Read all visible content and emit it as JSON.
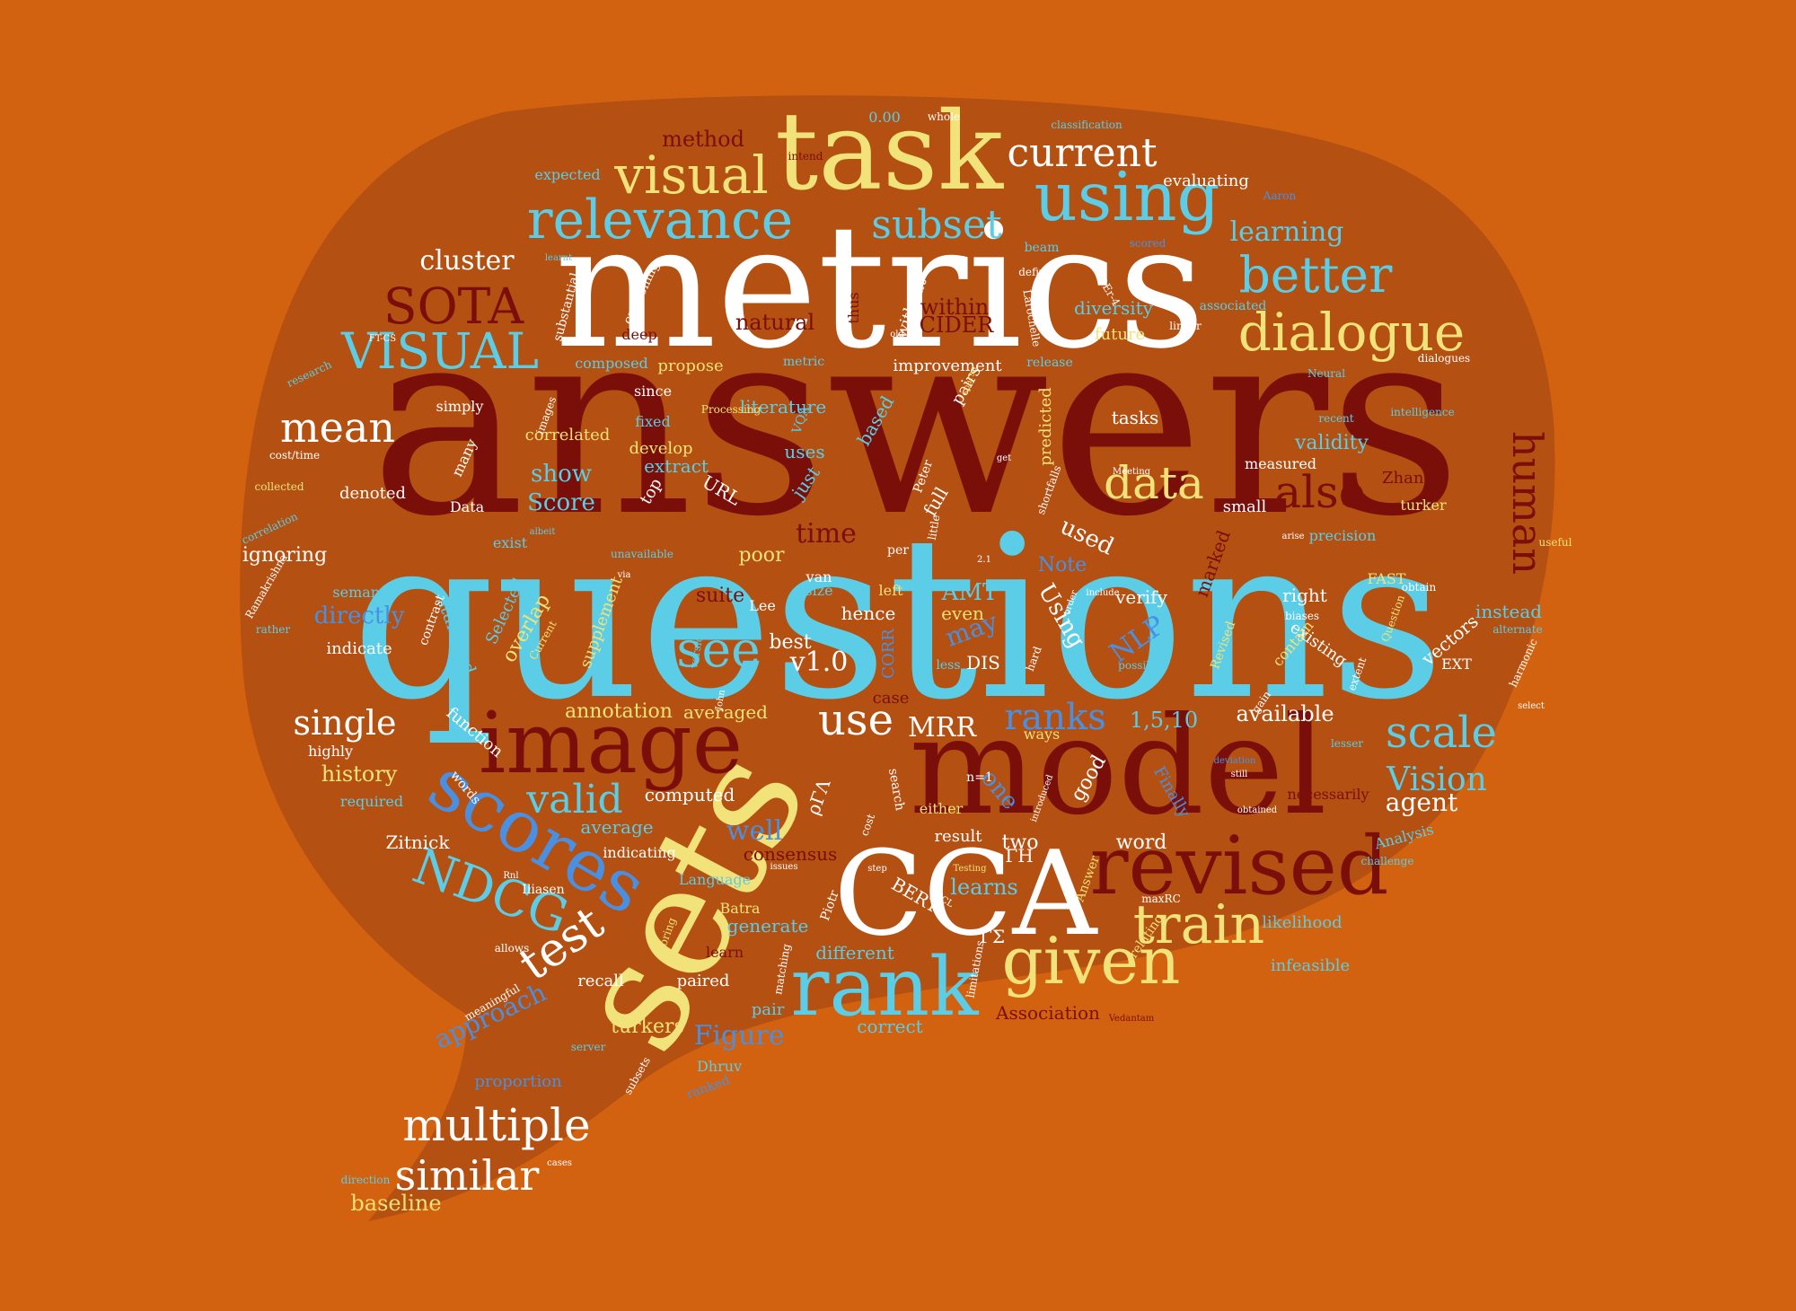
{
  "colors": {
    "background": "#d2620f",
    "bubble": "#b35012",
    "dark_red": "#7a0f0a",
    "cyan": "#5bcde6",
    "white": "#ffffff",
    "yellow": "#f2e27a",
    "blue": "#4a90e2",
    "orange_text": "#f0a020"
  },
  "words": [
    {
      "text": "answers",
      "color": "dark_red"
    },
    {
      "text": "questions",
      "color": "cyan"
    },
    {
      "text": "metrics",
      "color": "white"
    },
    {
      "text": "sets",
      "color": "yellow"
    },
    {
      "text": "model",
      "color": "dark_red"
    },
    {
      "text": "task",
      "color": "yellow"
    },
    {
      "text": "CCA",
      "color": "white"
    },
    {
      "text": "image",
      "color": "dark_red"
    },
    {
      "text": "revised",
      "color": "dark_red"
    },
    {
      "text": "rank",
      "color": "cyan"
    },
    {
      "text": "scores",
      "color": "blue"
    },
    {
      "text": "relevance",
      "color": "cyan"
    },
    {
      "text": "using",
      "color": "cyan"
    },
    {
      "text": "visual",
      "color": "yellow"
    },
    {
      "text": "dialogue",
      "color": "yellow"
    },
    {
      "text": "VISUAL",
      "color": "cyan"
    },
    {
      "text": "SOTA",
      "color": "dark_red"
    },
    {
      "text": "better",
      "color": "cyan"
    },
    {
      "text": "current",
      "color": "white"
    },
    {
      "text": "subset",
      "color": "cyan"
    },
    {
      "text": "given",
      "color": "yellow"
    },
    {
      "text": "train",
      "color": "yellow"
    },
    {
      "text": "multiple",
      "color": "white"
    },
    {
      "text": "similar",
      "color": "white"
    },
    {
      "text": "NDCG",
      "color": "cyan"
    },
    {
      "text": "test",
      "color": "white"
    },
    {
      "text": "data",
      "color": "yellow"
    },
    {
      "text": "also",
      "color": "dark_red"
    },
    {
      "text": "human",
      "color": "dark_red"
    },
    {
      "text": "mean",
      "color": "white"
    },
    {
      "text": "see",
      "color": "cyan"
    },
    {
      "text": "use",
      "color": "white"
    },
    {
      "text": "scale",
      "color": "cyan"
    },
    {
      "text": "valid",
      "color": "cyan"
    },
    {
      "text": "ranks",
      "color": "blue"
    },
    {
      "text": "single",
      "color": "white"
    },
    {
      "text": "cluster",
      "color": "white"
    },
    {
      "text": "learning",
      "color": "cyan"
    },
    {
      "text": "Vision",
      "color": "cyan"
    },
    {
      "text": "agent",
      "color": "white"
    },
    {
      "text": "MRR",
      "color": "white"
    },
    {
      "text": "v1.0",
      "color": "white"
    },
    {
      "text": "time",
      "color": "dark_red"
    },
    {
      "text": "NLP",
      "color": "blue"
    },
    {
      "text": "AMT",
      "color": "cyan"
    },
    {
      "text": "may",
      "color": "blue"
    },
    {
      "text": "Using",
      "color": "white"
    },
    {
      "text": "used",
      "color": "white"
    },
    {
      "text": "well",
      "color": "blue"
    },
    {
      "text": "consensus",
      "color": "dark_red"
    },
    {
      "text": "approach",
      "color": "blue"
    },
    {
      "text": "Figure",
      "color": "blue"
    },
    {
      "text": "turkers",
      "color": "yellow"
    },
    {
      "text": "baseline",
      "color": "yellow"
    },
    {
      "text": "history",
      "color": "yellow"
    },
    {
      "text": "Zitnick",
      "color": "white"
    },
    {
      "text": "annotation",
      "color": "yellow"
    },
    {
      "text": "averaged",
      "color": "yellow"
    },
    {
      "text": "available",
      "color": "white"
    },
    {
      "text": "1,5,10",
      "color": "cyan"
    },
    {
      "text": "directly",
      "color": "blue"
    },
    {
      "text": "show",
      "color": "cyan"
    },
    {
      "text": "Score",
      "color": "cyan"
    },
    {
      "text": "validity",
      "color": "cyan"
    },
    {
      "text": "precision",
      "color": "cyan"
    },
    {
      "text": "instead",
      "color": "cyan"
    },
    {
      "text": "verify",
      "color": "white"
    },
    {
      "text": "right",
      "color": "white"
    },
    {
      "text": "existing",
      "color": "white"
    },
    {
      "text": "learns",
      "color": "cyan"
    },
    {
      "text": "generate",
      "color": "cyan"
    },
    {
      "text": "different",
      "color": "cyan"
    },
    {
      "text": "correct",
      "color": "cyan"
    },
    {
      "text": "likelihood",
      "color": "cyan"
    },
    {
      "text": "infeasible",
      "color": "cyan"
    },
    {
      "text": "Association",
      "color": "dark_red"
    },
    {
      "text": "proportion",
      "color": "blue"
    },
    {
      "text": "computed",
      "color": "white"
    },
    {
      "text": "average",
      "color": "cyan"
    },
    {
      "text": "word",
      "color": "white"
    },
    {
      "text": "one",
      "color": "blue"
    },
    {
      "text": "two",
      "color": "white"
    },
    {
      "text": "good",
      "color": "white"
    },
    {
      "text": "hence",
      "color": "white"
    },
    {
      "text": "best",
      "color": "white"
    },
    {
      "text": "DIS",
      "color": "white"
    },
    {
      "text": "CIDER",
      "color": "dark_red"
    },
    {
      "text": "within",
      "color": "dark_red"
    },
    {
      "text": "natural",
      "color": "dark_red"
    },
    {
      "text": "method",
      "color": "dark_red"
    },
    {
      "text": "expected",
      "color": "cyan"
    },
    {
      "text": "evaluating",
      "color": "white"
    },
    {
      "text": "diversity",
      "color": "cyan"
    },
    {
      "text": "future",
      "color": "yellow"
    },
    {
      "text": "propose",
      "color": "yellow"
    },
    {
      "text": "improvement",
      "color": "white"
    },
    {
      "text": "composed",
      "color": "cyan"
    },
    {
      "text": "correlated",
      "color": "yellow"
    },
    {
      "text": "literature",
      "color": "cyan"
    },
    {
      "text": "uses",
      "color": "cyan"
    },
    {
      "text": "extract",
      "color": "cyan"
    },
    {
      "text": "develop",
      "color": "yellow"
    },
    {
      "text": "tasks",
      "color": "white"
    },
    {
      "text": "measured",
      "color": "white"
    },
    {
      "text": "Zhang",
      "color": "dark_red"
    },
    {
      "text": "turker",
      "color": "yellow"
    },
    {
      "text": "small",
      "color": "white"
    },
    {
      "text": "denoted",
      "color": "white"
    },
    {
      "text": "ignoring",
      "color": "white"
    },
    {
      "text": "indicate",
      "color": "white"
    },
    {
      "text": "semantic",
      "color": "cyan"
    },
    {
      "text": "suite",
      "color": "dark_red"
    },
    {
      "text": "poor",
      "color": "yellow"
    },
    {
      "text": "Note",
      "color": "blue"
    },
    {
      "text": "even",
      "color": "yellow"
    },
    {
      "text": "case",
      "color": "dark_red"
    },
    {
      "text": "function",
      "color": "white"
    },
    {
      "text": "highly",
      "color": "white"
    },
    {
      "text": "required",
      "color": "cyan"
    },
    {
      "text": "indicating",
      "color": "white"
    },
    {
      "text": "recall",
      "color": "white"
    },
    {
      "text": "paired",
      "color": "white"
    },
    {
      "text": "pair",
      "color": "cyan"
    },
    {
      "text": "learn",
      "color": "dark_red"
    },
    {
      "text": "Batra",
      "color": "yellow"
    },
    {
      "text": "Dhruv",
      "color": "cyan"
    },
    {
      "text": "result",
      "color": "white"
    },
    {
      "text": "either",
      "color": "yellow"
    },
    {
      "text": "necessarily",
      "color": "dark_red"
    },
    {
      "text": "Analysis",
      "color": "cyan"
    },
    {
      "text": "FAST",
      "color": "yellow"
    },
    {
      "text": "EXT",
      "color": "white"
    },
    {
      "text": "Data",
      "color": "white"
    },
    {
      "text": "URL",
      "color": "white"
    },
    {
      "text": "mean",
      "color": "white"
    },
    {
      "text": "since",
      "color": "white"
    },
    {
      "text": "fixed",
      "color": "cyan"
    },
    {
      "text": "simply",
      "color": "white"
    },
    {
      "text": "deep",
      "color": "dark_red"
    },
    {
      "text": "beam",
      "color": "cyan"
    },
    {
      "text": "define",
      "color": "white"
    },
    {
      "text": "associated",
      "color": "cyan"
    },
    {
      "text": "release",
      "color": "cyan"
    },
    {
      "text": "0.00",
      "color": "cyan"
    },
    {
      "text": "intend",
      "color": "dark_red"
    },
    {
      "text": "Language",
      "color": "cyan"
    },
    {
      "text": "top",
      "color": "white"
    },
    {
      "text": "just",
      "color": "cyan"
    },
    {
      "text": "full",
      "color": "white"
    },
    {
      "text": "based",
      "color": "cyan"
    },
    {
      "text": "pairs",
      "color": "white"
    },
    {
      "text": "predicted",
      "color": "yellow"
    },
    {
      "text": "marked",
      "color": "dark_red"
    },
    {
      "text": "vectors",
      "color": "white"
    },
    {
      "text": "contain",
      "color": "yellow"
    },
    {
      "text": "Revised",
      "color": "yellow"
    },
    {
      "text": "supplement",
      "color": "yellow"
    },
    {
      "text": "overlap",
      "color": "yellow"
    },
    {
      "text": "Selected",
      "color": "cyan"
    },
    {
      "text": "standard",
      "color": "cyan"
    },
    {
      "text": "exist",
      "color": "cyan"
    },
    {
      "text": "many",
      "color": "white"
    },
    {
      "text": "images",
      "color": "white"
    },
    {
      "text": "captioning",
      "color": "white"
    },
    {
      "text": "substantial",
      "color": "white"
    },
    {
      "text": "without",
      "color": "white"
    },
    {
      "text": "thus",
      "color": "dark_red"
    },
    {
      "text": "metric",
      "color": "cyan"
    },
    {
      "text": "Vedantam",
      "color": "dark_red"
    },
    {
      "text": "paired",
      "color": "white"
    },
    {
      "text": "subsets",
      "color": "white"
    },
    {
      "text": "scoring",
      "color": "yellow"
    },
    {
      "text": "BERT",
      "color": "white"
    },
    {
      "text": "Piotr",
      "color": "white"
    },
    {
      "text": "matching",
      "color": "white"
    },
    {
      "text": "limitations",
      "color": "white"
    },
    {
      "text": "ways",
      "color": "yellow"
    },
    {
      "text": "lesser",
      "color": "cyan"
    },
    {
      "text": "challenge",
      "color": "cyan"
    },
    {
      "text": "Finally",
      "color": "blue"
    },
    {
      "text": "size",
      "color": "cyan"
    },
    {
      "text": "left",
      "color": "yellow"
    },
    {
      "text": "van",
      "color": "white"
    },
    {
      "text": "Lee",
      "color": "white"
    },
    {
      "text": "CORR",
      "color": "blue"
    },
    {
      "text": "less",
      "color": "cyan"
    },
    {
      "text": "hard",
      "color": "white"
    },
    {
      "text": "order",
      "color": "white"
    },
    {
      "text": "possible",
      "color": "cyan"
    },
    {
      "text": "useful",
      "color": "yellow"
    },
    {
      "text": "obtain",
      "color": "white"
    },
    {
      "text": "biases",
      "color": "white"
    },
    {
      "text": "harmonic",
      "color": "white"
    },
    {
      "text": "alternate",
      "color": "cyan"
    },
    {
      "text": "Question",
      "color": "yellow"
    },
    {
      "text": "rather",
      "color": "cyan"
    },
    {
      "text": "collected",
      "color": "yellow"
    },
    {
      "text": "correlation",
      "color": "cyan"
    },
    {
      "text": "contrast",
      "color": "white"
    },
    {
      "text": "words",
      "color": "white"
    },
    {
      "text": "allows",
      "color": "white"
    },
    {
      "text": "meaningful",
      "color": "white"
    },
    {
      "text": "server",
      "color": "cyan"
    },
    {
      "text": "cases",
      "color": "white"
    },
    {
      "text": "direction",
      "color": "cyan"
    },
    {
      "text": "ranked",
      "color": "blue"
    },
    {
      "text": "Peter",
      "color": "white"
    },
    {
      "text": "per",
      "color": "white"
    },
    {
      "text": "Meeting",
      "color": "white"
    },
    {
      "text": "recent",
      "color": "cyan"
    },
    {
      "text": "Neural",
      "color": "cyan"
    },
    {
      "text": "intelligence",
      "color": "cyan"
    },
    {
      "text": "research",
      "color": "cyan"
    },
    {
      "text": "cost/time",
      "color": "white"
    },
    {
      "text": "Ramakrishna",
      "color": "white"
    },
    {
      "text": "issues",
      "color": "white"
    },
    {
      "text": "Aaron",
      "color": "blue"
    },
    {
      "text": "scored",
      "color": "blue"
    },
    {
      "text": "Larochelle",
      "color": "white"
    },
    {
      "text": "CIDEr-4",
      "color": "white"
    },
    {
      "text": "linear",
      "color": "white"
    },
    {
      "text": "dialogues",
      "color": "white"
    },
    {
      "text": "classification",
      "color": "cyan"
    },
    {
      "text": "whole",
      "color": "white"
    },
    {
      "text": "VQA",
      "color": "cyan"
    },
    {
      "text": "Processing",
      "color": "yellow"
    },
    {
      "text": "old",
      "color": "white"
    },
    {
      "text": "sparse",
      "color": "yellow"
    },
    {
      "text": "n=1",
      "color": "white"
    },
    {
      "text": "search",
      "color": "white"
    },
    {
      "text": "cost",
      "color": "white"
    },
    {
      "text": "extent",
      "color": "white"
    },
    {
      "text": "gain",
      "color": "white"
    },
    {
      "text": "ΓΣ",
      "color": "white"
    },
    {
      "text": "ΓΗ",
      "color": "white"
    },
    {
      "text": "ρΓΛ",
      "color": "white"
    },
    {
      "text": "Iliasen",
      "color": "white"
    },
    {
      "text": "ACL",
      "color": "white"
    },
    {
      "text": "John",
      "color": "white"
    },
    {
      "text": "version",
      "color": "cyan"
    },
    {
      "text": "Current",
      "color": "yellow"
    },
    {
      "text": "unavailable",
      "color": "cyan"
    },
    {
      "text": "via",
      "color": "white"
    },
    {
      "text": "2.1",
      "color": "white"
    },
    {
      "text": "little",
      "color": "white"
    },
    {
      "text": "shortfalls",
      "color": "white"
    },
    {
      "text": "get",
      "color": "white"
    },
    {
      "text": "albeit",
      "color": "cyan"
    },
    {
      "text": "maxRC",
      "color": "white"
    },
    {
      "text": "deviation",
      "color": "blue"
    },
    {
      "text": "FT-CS",
      "color": "white"
    },
    {
      "text": "learnt",
      "color": "cyan"
    },
    {
      "text": "include",
      "color": "white"
    },
    {
      "text": "arise",
      "color": "white"
    },
    {
      "text": "still",
      "color": "white"
    },
    {
      "text": "obtained",
      "color": "white"
    },
    {
      "text": "introduced",
      "color": "white"
    },
    {
      "text": "select",
      "color": "white"
    },
    {
      "text": "Testing",
      "color": "yellow"
    },
    {
      "text": "step",
      "color": "white"
    },
    {
      "text": "Rnl",
      "color": "white"
    },
    {
      "text": "relating",
      "color": "yellow"
    },
    {
      "text": "Answer",
      "color": "yellow"
    }
  ]
}
